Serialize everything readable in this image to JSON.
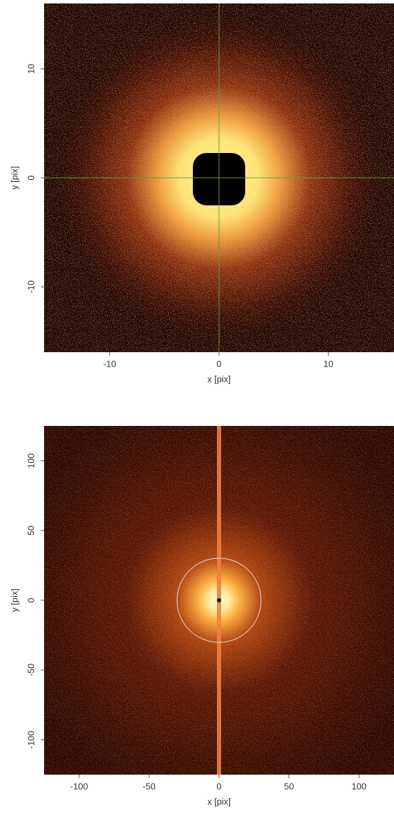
{
  "chart_data": [
    {
      "type": "heatmap",
      "xlabel": "x [pix]",
      "ylabel": "y [pix]",
      "xlim": [
        -16,
        16
      ],
      "ylim": [
        -16,
        16
      ],
      "xticks": [
        -10,
        0,
        10
      ],
      "yticks": [
        -10,
        0,
        10
      ]
    },
    {
      "type": "heatmap",
      "xlabel": "x [pix]",
      "ylabel": "y [pix]",
      "xlim": [
        -125,
        125
      ],
      "ylim": [
        -125,
        125
      ],
      "xticks": [
        -100,
        -50,
        0,
        50,
        100
      ],
      "yticks": [
        -100,
        -50,
        0,
        50,
        100
      ]
    }
  ]
}
